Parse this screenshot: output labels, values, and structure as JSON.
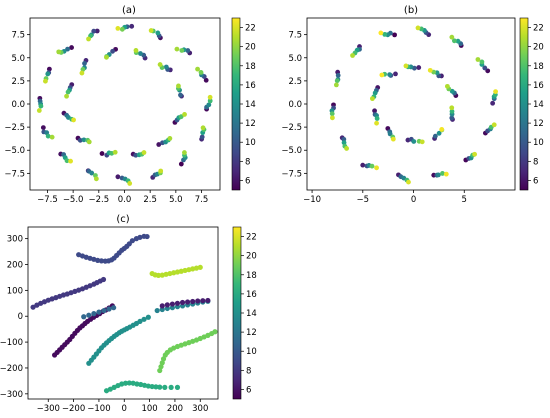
{
  "chart_data": [
    {
      "type": "scatter",
      "title": "(a)",
      "xlabel": "",
      "ylabel": "",
      "xlim": [
        -9.2,
        9.3
      ],
      "ylim": [
        -9.3,
        9.3
      ],
      "x_ticks": [
        -7.5,
        -5.0,
        -2.5,
        0.0,
        2.5,
        5.0,
        7.5
      ],
      "x_tick_labels": [
        "−7.5",
        "−5.0",
        "−2.5",
        "0.0",
        "2.5",
        "5.0",
        "7.5"
      ],
      "y_ticks": [
        -7.5,
        -5.0,
        -2.5,
        0.0,
        2.5,
        5.0,
        7.5
      ],
      "y_tick_labels": [
        "−7.5",
        "−5.0",
        "−2.5",
        "0.0",
        "2.5",
        "5.0",
        "7.5"
      ],
      "colorbar": {
        "colormap": "viridis",
        "range": [
          5,
          23
        ],
        "ticks": [
          "6",
          "8",
          "10",
          "12",
          "14",
          "16",
          "18",
          "20",
          "22"
        ]
      },
      "cluster_layout": {
        "shape": "rings",
        "rings": [
          {
            "radius": 8.2,
            "count": 16
          },
          {
            "radius": 5.6,
            "count": 12
          }
        ],
        "points_per_cluster": 5,
        "cluster_spread": 0.6
      }
    },
    {
      "type": "scatter",
      "title": "(b)",
      "xlabel": "",
      "ylabel": "",
      "xlim": [
        -10.5,
        10.0
      ],
      "ylim": [
        -9.3,
        9.3
      ],
      "x_ticks": [
        -10,
        -5,
        0,
        5
      ],
      "x_tick_labels": [
        "−10",
        "−5",
        "0",
        "5"
      ],
      "y_ticks": [
        -7.5,
        -5.0,
        -2.5,
        0.0,
        2.5,
        5.0,
        7.5
      ],
      "y_tick_labels": [
        "−7.5",
        "−5.0",
        "−2.5",
        "0.0",
        "2.5",
        "5.0",
        "7.5"
      ],
      "colorbar": {
        "colormap": "viridis",
        "range": [
          5,
          23
        ],
        "ticks": [
          "6",
          "8",
          "10",
          "12",
          "14",
          "16",
          "18",
          "20",
          "22"
        ]
      },
      "cluster_layout": {
        "shape": "rings",
        "rings": [
          {
            "radius": 8.0,
            "count": 14
          },
          {
            "radius": 4.0,
            "count": 10
          }
        ],
        "points_per_cluster": 5,
        "cluster_spread": 0.6
      }
    },
    {
      "type": "scatter",
      "title": "(c)",
      "xlabel": "",
      "ylabel": "",
      "xlim": [
        -380,
        370
      ],
      "ylim": [
        -320,
        345
      ],
      "x_ticks": [
        -300,
        -200,
        -100,
        0,
        100,
        200,
        300
      ],
      "x_tick_labels": [
        "−300",
        "−200",
        "−100",
        "0",
        "100",
        "200",
        "300"
      ],
      "y_ticks": [
        -300,
        -200,
        -100,
        0,
        100,
        200,
        300
      ],
      "y_tick_labels": [
        "−300",
        "−200",
        "−100",
        "0",
        "100",
        "200",
        "300"
      ],
      "colorbar": {
        "colormap": "viridis",
        "range": [
          5,
          23
        ],
        "ticks": [
          "6",
          "8",
          "10",
          "12",
          "14",
          "16",
          "18",
          "20",
          "22"
        ]
      },
      "series": [
        {
          "value": 9,
          "points": [
            [
              -180,
              238
            ],
            [
              -165,
              233
            ],
            [
              -150,
              228
            ],
            [
              -135,
              224
            ],
            [
              -120,
              220
            ],
            [
              -105,
              216
            ],
            [
              -90,
              214
            ],
            [
              -75,
              213
            ],
            [
              -62,
              214
            ],
            [
              -50,
              218
            ],
            [
              -40,
              225
            ],
            [
              -30,
              235
            ],
            [
              -20,
              245
            ],
            [
              -10,
              255
            ],
            [
              0,
              262
            ],
            [
              10,
              270
            ],
            [
              20,
              280
            ],
            [
              32,
              292
            ],
            [
              48,
              300
            ],
            [
              62,
              305
            ],
            [
              78,
              309
            ],
            [
              90,
              308
            ]
          ]
        },
        {
          "value": 8,
          "points": [
            [
              -360,
              35
            ],
            [
              -345,
              43
            ],
            [
              -330,
              50
            ],
            [
              -315,
              56
            ],
            [
              -300,
              62
            ],
            [
              -285,
              67
            ],
            [
              -270,
              72
            ],
            [
              -255,
              77
            ],
            [
              -240,
              82
            ],
            [
              -225,
              86
            ],
            [
              -210,
              91
            ],
            [
              -195,
              96
            ],
            [
              -180,
              101
            ],
            [
              -165,
              106
            ],
            [
              -150,
              112
            ],
            [
              -135,
              118
            ],
            [
              -120,
              124
            ],
            [
              -108,
              130
            ],
            [
              -95,
              136
            ],
            [
              -82,
              142
            ]
          ]
        },
        {
          "value": 21,
          "points": [
            [
              110,
              165
            ],
            [
              122,
              160
            ],
            [
              135,
              158
            ],
            [
              150,
              159
            ],
            [
              165,
              162
            ],
            [
              180,
              165
            ],
            [
              195,
              168
            ],
            [
              210,
              171
            ],
            [
              225,
              174
            ],
            [
              240,
              177
            ],
            [
              255,
              180
            ],
            [
              270,
              183
            ],
            [
              285,
              186
            ],
            [
              300,
              189
            ]
          ]
        },
        {
          "value": 5.5,
          "points": [
            [
              -275,
              -150
            ],
            [
              -265,
              -140
            ],
            [
              -255,
              -130
            ],
            [
              -245,
              -120
            ],
            [
              -235,
              -110
            ],
            [
              -225,
              -100
            ],
            [
              -215,
              -90
            ],
            [
              -205,
              -78
            ],
            [
              -195,
              -66
            ],
            [
              -185,
              -55
            ],
            [
              -175,
              -45
            ],
            [
              -165,
              -37
            ],
            [
              -155,
              -28
            ],
            [
              -145,
              -20
            ],
            [
              -133,
              -12
            ],
            [
              -121,
              -4
            ],
            [
              -109,
              3
            ],
            [
              -97,
              10
            ],
            [
              -85,
              18
            ],
            [
              -73,
              24
            ],
            [
              -60,
              32
            ],
            [
              -47,
              40
            ]
          ]
        },
        {
          "value": 11,
          "points": [
            [
              -160,
              -2
            ],
            [
              -140,
              4
            ],
            [
              -120,
              10
            ],
            [
              -100,
              16
            ],
            [
              -80,
              22
            ],
            [
              -60,
              28
            ],
            [
              -42,
              33
            ]
          ]
        },
        {
          "value": 14,
          "points": [
            [
              -140,
              -182
            ],
            [
              -130,
              -170
            ],
            [
              -120,
              -158
            ],
            [
              -110,
              -146
            ],
            [
              -100,
              -134
            ],
            [
              -90,
              -122
            ],
            [
              -80,
              -112
            ],
            [
              -70,
              -103
            ],
            [
              -60,
              -94
            ],
            [
              -50,
              -86
            ],
            [
              -40,
              -78
            ],
            [
              -30,
              -71
            ],
            [
              -20,
              -64
            ],
            [
              -10,
              -58
            ],
            [
              0,
              -53
            ],
            [
              10,
              -48
            ],
            [
              22,
              -42
            ],
            [
              35,
              -35
            ],
            [
              48,
              -28
            ],
            [
              62,
              -20
            ],
            [
              78,
              -12
            ],
            [
              95,
              -4
            ]
          ]
        },
        {
          "value": 13,
          "points": [
            [
              130,
              22
            ],
            [
              150,
              26
            ],
            [
              170,
              30
            ],
            [
              190,
              33
            ],
            [
              210,
              37
            ],
            [
              230,
              40
            ],
            [
              250,
              44
            ],
            [
              270,
              47
            ],
            [
              290,
              51
            ],
            [
              310,
              55
            ],
            [
              330,
              58
            ]
          ]
        },
        {
          "value": 6.5,
          "points": [
            [
              150,
              40
            ],
            [
              170,
              44
            ],
            [
              190,
              47
            ],
            [
              210,
              50
            ],
            [
              230,
              53
            ],
            [
              250,
              55
            ],
            [
              270,
              57
            ],
            [
              290,
              59
            ],
            [
              310,
              60
            ],
            [
              330,
              61
            ]
          ]
        },
        {
          "value": 19,
          "points": [
            [
              140,
              -210
            ],
            [
              145,
              -195
            ],
            [
              150,
              -180
            ],
            [
              155,
              -165
            ],
            [
              162,
              -150
            ],
            [
              170,
              -140
            ],
            [
              182,
              -130
            ],
            [
              195,
              -123
            ],
            [
              210,
              -117
            ],
            [
              225,
              -112
            ],
            [
              240,
              -107
            ],
            [
              255,
              -102
            ],
            [
              270,
              -97
            ],
            [
              285,
              -92
            ],
            [
              300,
              -86
            ],
            [
              315,
              -80
            ],
            [
              330,
              -74
            ],
            [
              345,
              -67
            ],
            [
              358,
              -60
            ]
          ]
        },
        {
          "value": 16,
          "points": [
            [
              -70,
              -288
            ],
            [
              -55,
              -282
            ],
            [
              -40,
              -275
            ],
            [
              -25,
              -268
            ],
            [
              -10,
              -262
            ],
            [
              5,
              -259
            ],
            [
              20,
              -258
            ],
            [
              35,
              -259
            ],
            [
              50,
              -262
            ],
            [
              65,
              -264
            ],
            [
              80,
              -267
            ],
            [
              95,
              -270
            ],
            [
              110,
              -272
            ],
            [
              125,
              -273
            ],
            [
              140,
              -274
            ],
            [
              160,
              -275
            ],
            [
              185,
              -275
            ],
            [
              210,
              -275
            ]
          ]
        }
      ]
    }
  ]
}
